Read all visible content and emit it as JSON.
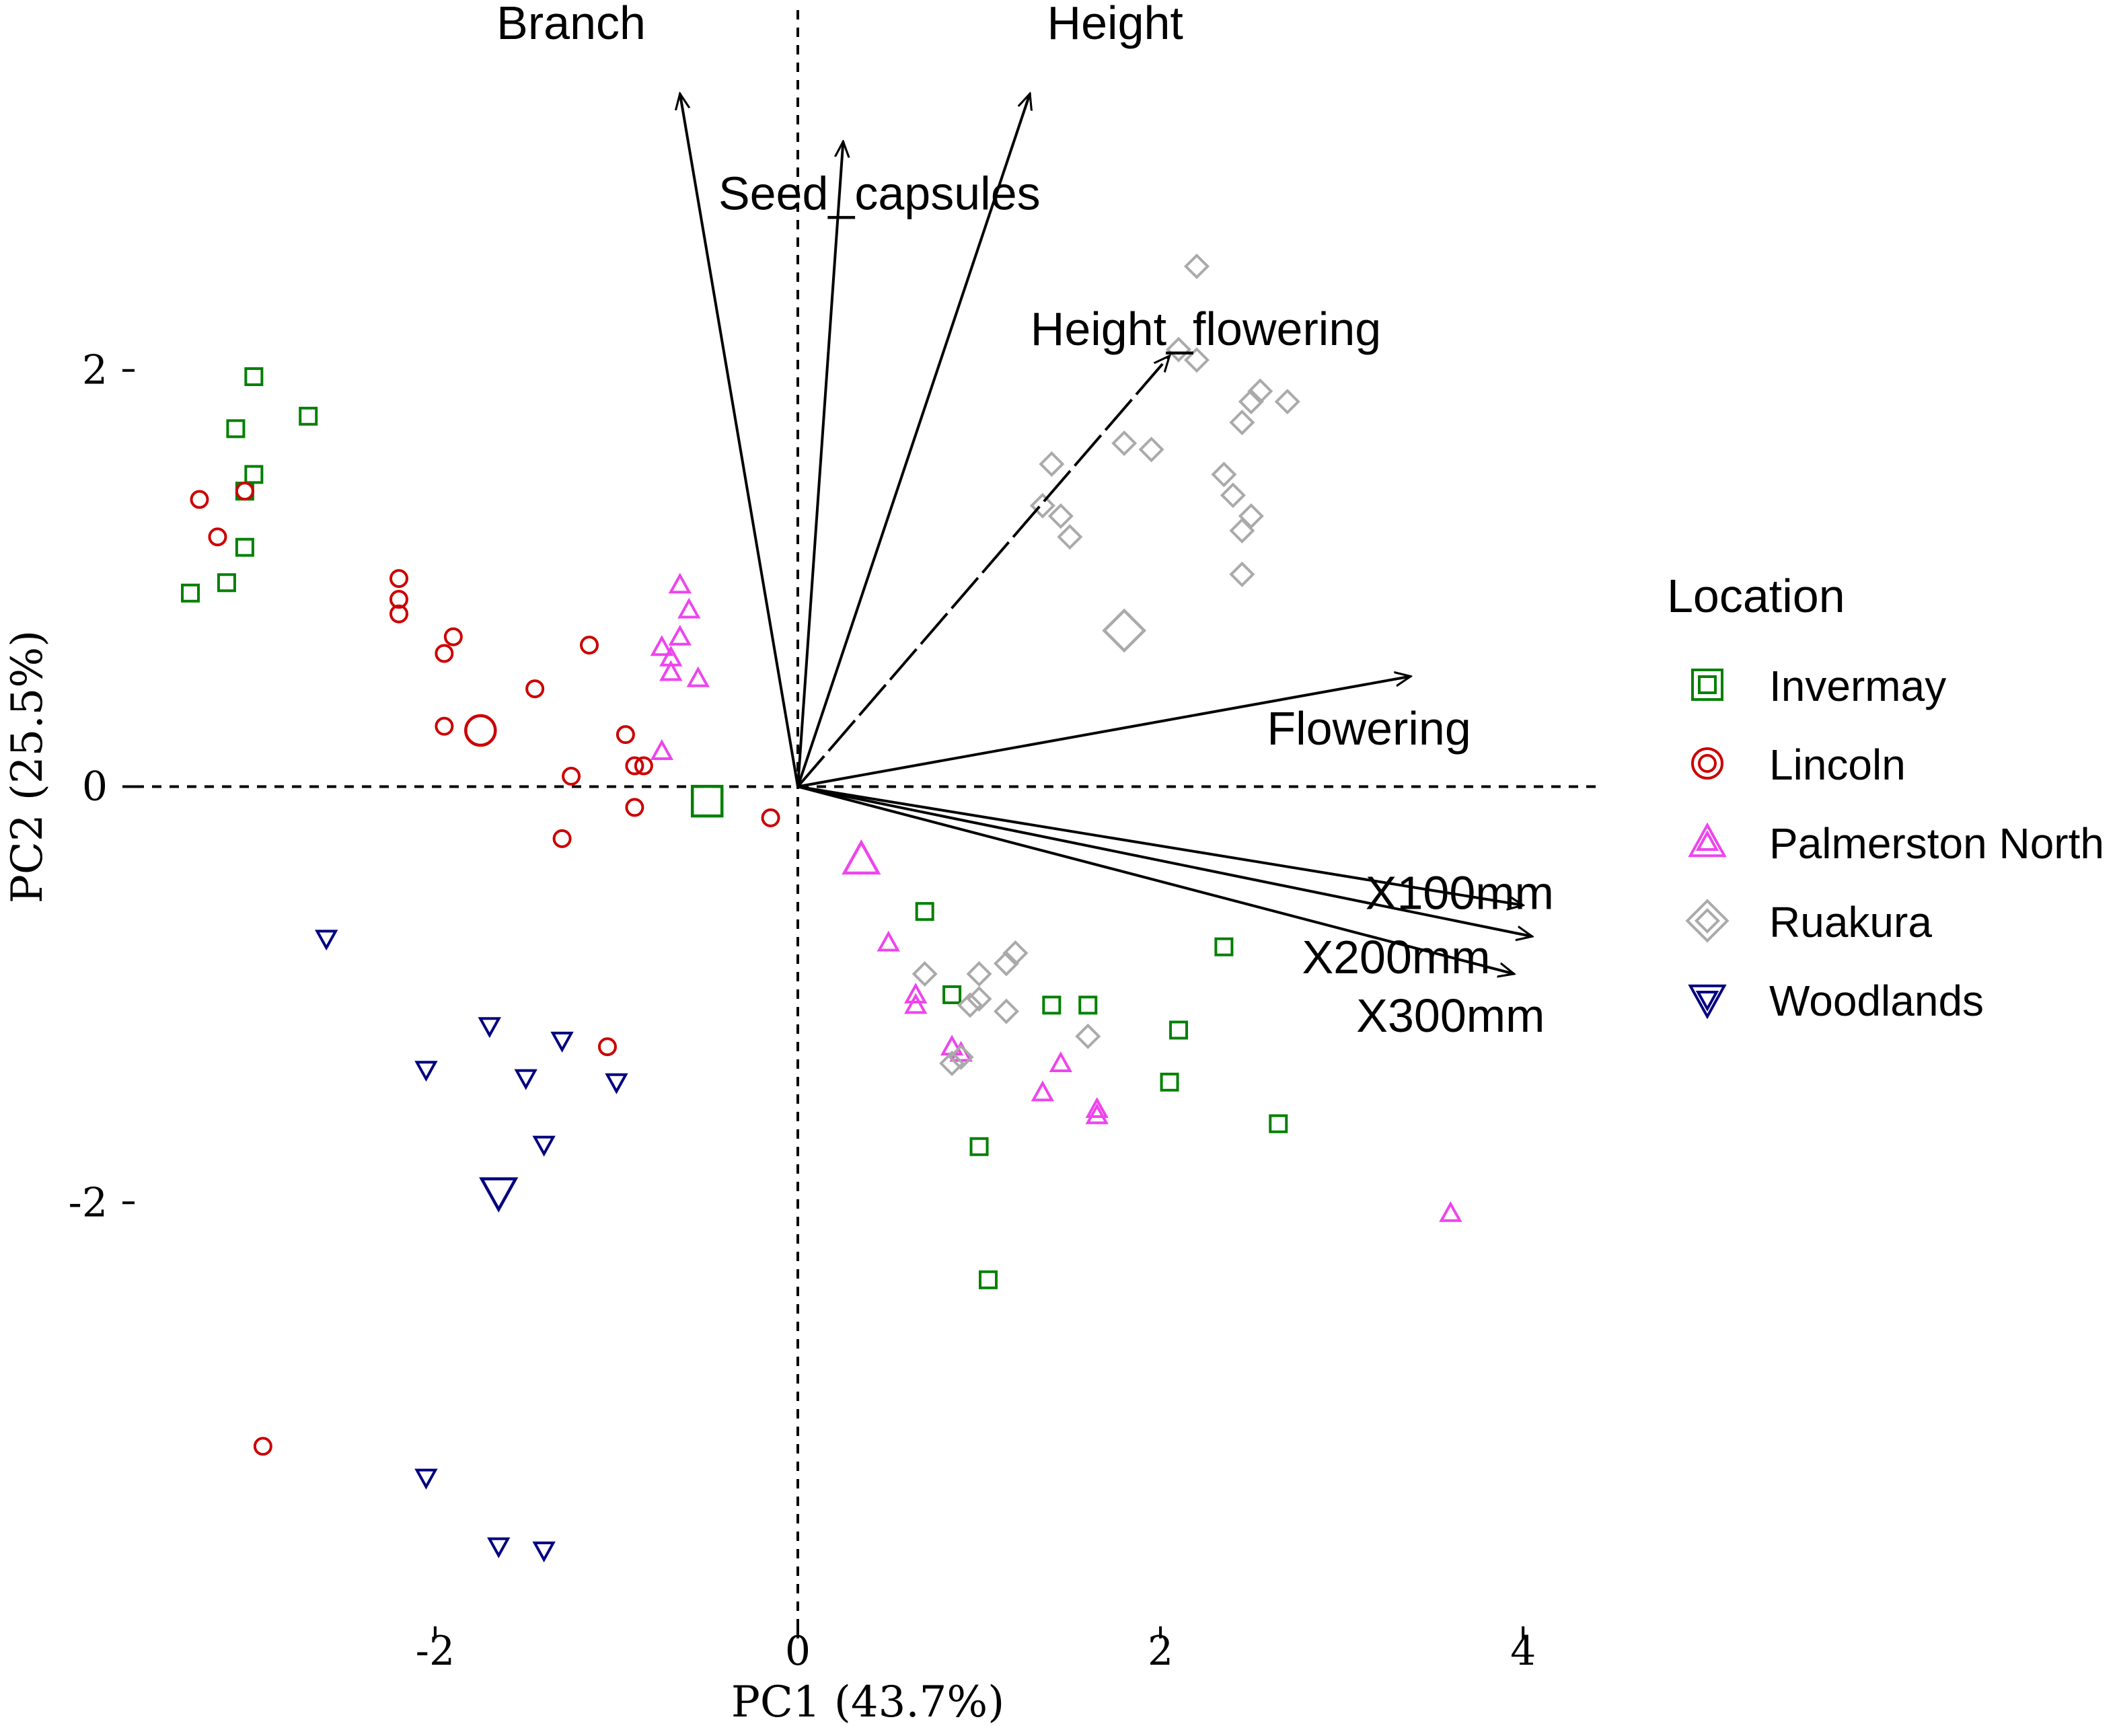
{
  "chart_data": {
    "type": "scatter",
    "subtype": "pca-biplot",
    "xlabel": "PC1 (43.7%)",
    "ylabel": "PC2 (25.5%)",
    "xlim": [
      -4.4,
      4.4
    ],
    "ylim": [
      -4.1,
      3.78
    ],
    "x_ticks": [
      -2,
      0,
      2,
      4
    ],
    "x_tick_labels": [
      "-2",
      "0",
      "2",
      "4"
    ],
    "y_ticks": [
      -2,
      0,
      2
    ],
    "y_tick_labels": [
      "-2",
      "0",
      "2"
    ],
    "reference_lines": {
      "x": 0,
      "y": 0,
      "style": "dashed"
    },
    "legend": {
      "title": "Location",
      "position": "right"
    },
    "series": [
      {
        "name": "Invermay",
        "color": "#008000",
        "marker": "square",
        "points": [
          [
            -3.0,
            1.97
          ],
          [
            -3.1,
            1.72
          ],
          [
            -2.7,
            1.78
          ],
          [
            -3.0,
            1.5
          ],
          [
            -3.05,
            1.42
          ],
          [
            -3.05,
            1.15
          ],
          [
            -3.15,
            0.98
          ],
          [
            -3.35,
            0.93
          ],
          [
            0.7,
            -0.6
          ],
          [
            0.85,
            -1.0
          ],
          [
            1.4,
            -1.05
          ],
          [
            1.6,
            -1.05
          ],
          [
            2.1,
            -1.17
          ],
          [
            2.35,
            -0.77
          ],
          [
            2.05,
            -1.42
          ],
          [
            2.65,
            -1.62
          ],
          [
            1.0,
            -1.73
          ],
          [
            1.05,
            -2.37
          ]
        ],
        "centroid": [
          -0.5,
          -0.07
        ]
      },
      {
        "name": "Lincoln",
        "color": "#cc0000",
        "marker": "circle",
        "points": [
          [
            -3.3,
            1.38
          ],
          [
            -3.05,
            1.42
          ],
          [
            -3.2,
            1.2
          ],
          [
            -2.2,
            1.0
          ],
          [
            -2.2,
            0.9
          ],
          [
            -2.2,
            0.83
          ],
          [
            -1.9,
            0.72
          ],
          [
            -1.95,
            0.64
          ],
          [
            -1.15,
            0.68
          ],
          [
            -1.45,
            0.47
          ],
          [
            -1.95,
            0.29
          ],
          [
            -0.95,
            0.25
          ],
          [
            -0.9,
            0.1
          ],
          [
            -0.85,
            0.1
          ],
          [
            -1.25,
            0.05
          ],
          [
            -0.9,
            -0.1
          ],
          [
            -1.3,
            -0.25
          ],
          [
            -0.15,
            -0.15
          ],
          [
            -1.05,
            -1.25
          ],
          [
            -2.95,
            -3.17
          ]
        ],
        "centroid": [
          -1.75,
          0.27
        ]
      },
      {
        "name": "Palmerston North",
        "color": "#ee44ee",
        "marker": "triangle-up",
        "points": [
          [
            -0.65,
            0.97
          ],
          [
            -0.6,
            0.85
          ],
          [
            -0.65,
            0.72
          ],
          [
            -0.75,
            0.67
          ],
          [
            -0.7,
            0.62
          ],
          [
            -0.7,
            0.55
          ],
          [
            -0.55,
            0.52
          ],
          [
            -0.75,
            0.17
          ],
          [
            0.5,
            -0.75
          ],
          [
            0.65,
            -1.0
          ],
          [
            0.65,
            -1.05
          ],
          [
            0.85,
            -1.25
          ],
          [
            0.9,
            -1.28
          ],
          [
            1.45,
            -1.33
          ],
          [
            1.35,
            -1.47
          ],
          [
            1.65,
            -1.55
          ],
          [
            1.65,
            -1.58
          ],
          [
            3.6,
            -2.05
          ]
        ],
        "centroid": [
          0.35,
          -0.35
        ]
      },
      {
        "name": "Ruakura",
        "color": "#aaaaaa",
        "marker": "diamond",
        "points": [
          [
            2.2,
            2.5
          ],
          [
            2.1,
            2.1
          ],
          [
            2.2,
            2.05
          ],
          [
            2.55,
            1.9
          ],
          [
            2.5,
            1.85
          ],
          [
            2.7,
            1.85
          ],
          [
            2.45,
            1.75
          ],
          [
            1.8,
            1.65
          ],
          [
            1.95,
            1.62
          ],
          [
            1.4,
            1.55
          ],
          [
            2.35,
            1.5
          ],
          [
            2.4,
            1.4
          ],
          [
            1.35,
            1.35
          ],
          [
            1.45,
            1.3
          ],
          [
            2.5,
            1.3
          ],
          [
            2.45,
            1.23
          ],
          [
            1.5,
            1.2
          ],
          [
            2.45,
            1.02
          ],
          [
            1.2,
            -0.8
          ],
          [
            1.15,
            -0.85
          ],
          [
            0.7,
            -0.9
          ],
          [
            1.0,
            -0.9
          ],
          [
            1.0,
            -1.02
          ],
          [
            0.95,
            -1.05
          ],
          [
            1.15,
            -1.08
          ],
          [
            1.6,
            -1.2
          ],
          [
            0.9,
            -1.3
          ],
          [
            0.85,
            -1.33
          ]
        ],
        "centroid": [
          1.8,
          0.75
        ]
      },
      {
        "name": "Woodlands",
        "color": "#000080",
        "marker": "triangle-down",
        "points": [
          [
            -2.6,
            -0.73
          ],
          [
            -1.7,
            -1.15
          ],
          [
            -1.3,
            -1.22
          ],
          [
            -2.05,
            -1.36
          ],
          [
            -1.5,
            -1.4
          ],
          [
            -1.0,
            -1.42
          ],
          [
            -1.4,
            -1.72
          ],
          [
            -2.05,
            -3.32
          ],
          [
            -1.65,
            -3.65
          ],
          [
            -1.4,
            -3.67
          ]
        ],
        "centroid": [
          -1.65,
          -1.95
        ]
      }
    ],
    "loadings": [
      {
        "name": "Branch",
        "x": -0.65,
        "y": 3.33
      },
      {
        "name": "Seed_capsules",
        "x": 0.25,
        "y": 3.1
      },
      {
        "name": "Height",
        "x": 1.28,
        "y": 3.33
      },
      {
        "name": "Height_flowering",
        "x": 2.05,
        "y": 2.07
      },
      {
        "name": "Flowering",
        "x": 3.38,
        "y": 0.53
      },
      {
        "name": "X100mm",
        "x": 4.0,
        "y": -0.57
      },
      {
        "name": "X200mm",
        "x": 4.05,
        "y": -0.72
      },
      {
        "name": "X300mm",
        "x": 3.95,
        "y": -0.9
      }
    ]
  }
}
